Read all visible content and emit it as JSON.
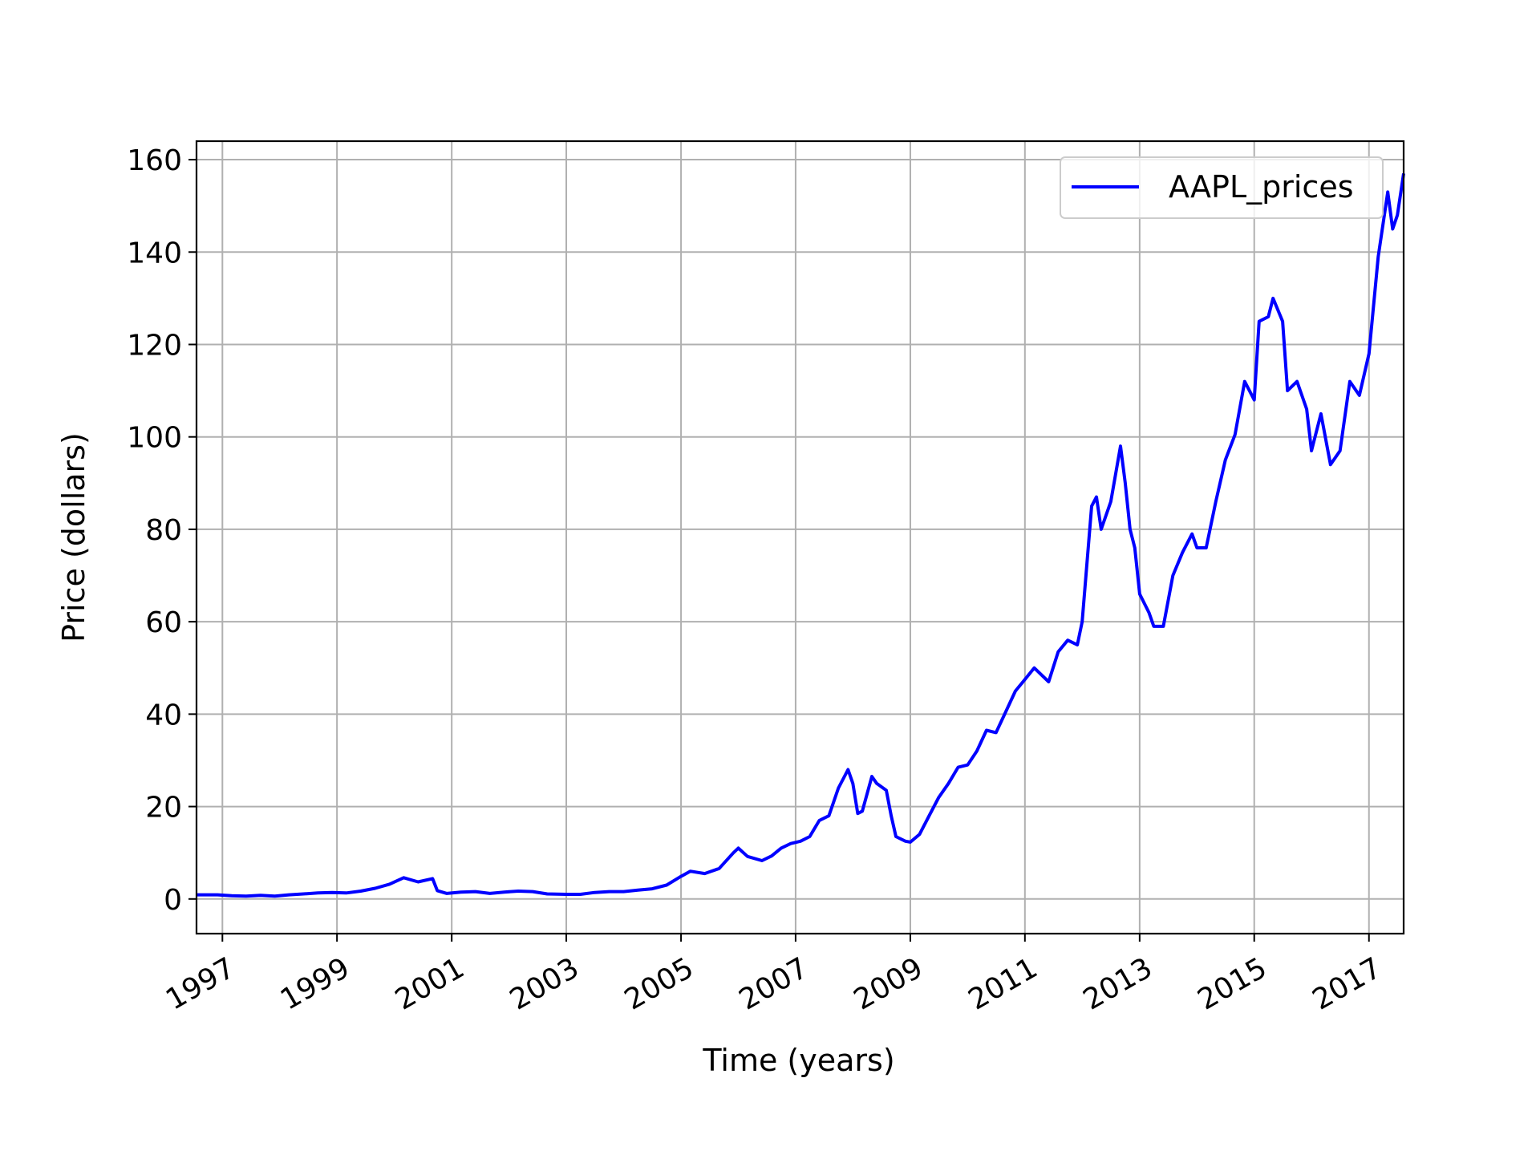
{
  "chart_data": {
    "type": "line",
    "title": "",
    "xlabel": "Time (years)",
    "ylabel": "Price (dollars)",
    "grid": true,
    "legend_position": "top-right",
    "xlim": [
      "1996-07-20",
      "2017-08-10"
    ],
    "ylim": [
      -7.5,
      164
    ],
    "x_ticks": [
      "1997",
      "1999",
      "2001",
      "2003",
      "2005",
      "2007",
      "2009",
      "2011",
      "2013",
      "2015",
      "2017"
    ],
    "y_ticks": [
      "0",
      "20",
      "40",
      "60",
      "80",
      "100",
      "120",
      "140",
      "160"
    ],
    "series": [
      {
        "name": "AAPL_prices",
        "color": "#0000ff",
        "points": [
          [
            "1996-07-20",
            0.9
          ],
          [
            "1996-12-01",
            0.9
          ],
          [
            "1997-03-01",
            0.7
          ],
          [
            "1997-06-01",
            0.6
          ],
          [
            "1997-09-01",
            0.8
          ],
          [
            "1997-12-01",
            0.6
          ],
          [
            "1998-03-01",
            0.9
          ],
          [
            "1998-06-01",
            1.1
          ],
          [
            "1998-09-01",
            1.3
          ],
          [
            "1998-12-01",
            1.4
          ],
          [
            "1999-03-01",
            1.3
          ],
          [
            "1999-06-01",
            1.7
          ],
          [
            "1999-09-01",
            2.3
          ],
          [
            "1999-12-01",
            3.2
          ],
          [
            "2000-03-01",
            4.6
          ],
          [
            "2000-06-01",
            3.7
          ],
          [
            "2000-09-01",
            4.4
          ],
          [
            "2000-10-01",
            1.8
          ],
          [
            "2000-12-01",
            1.2
          ],
          [
            "2001-03-01",
            1.5
          ],
          [
            "2001-06-01",
            1.6
          ],
          [
            "2001-09-01",
            1.2
          ],
          [
            "2001-12-01",
            1.5
          ],
          [
            "2002-03-01",
            1.7
          ],
          [
            "2002-06-01",
            1.6
          ],
          [
            "2002-09-01",
            1.1
          ],
          [
            "2003-01-01",
            1.0
          ],
          [
            "2003-04-01",
            1.0
          ],
          [
            "2003-07-01",
            1.4
          ],
          [
            "2003-10-01",
            1.6
          ],
          [
            "2004-01-01",
            1.6
          ],
          [
            "2004-04-01",
            1.9
          ],
          [
            "2004-07-01",
            2.2
          ],
          [
            "2004-10-01",
            3.0
          ],
          [
            "2005-01-01",
            4.9
          ],
          [
            "2005-03-01",
            6.0
          ],
          [
            "2005-06-01",
            5.5
          ],
          [
            "2005-09-01",
            6.6
          ],
          [
            "2005-12-01",
            10.0
          ],
          [
            "2006-01-01",
            11.0
          ],
          [
            "2006-03-01",
            9.2
          ],
          [
            "2006-06-01",
            8.3
          ],
          [
            "2006-08-01",
            9.3
          ],
          [
            "2006-10-01",
            11.0
          ],
          [
            "2006-12-01",
            12.0
          ],
          [
            "2007-02-01",
            12.5
          ],
          [
            "2007-04-01",
            13.5
          ],
          [
            "2007-06-01",
            17.0
          ],
          [
            "2007-08-01",
            18.0
          ],
          [
            "2007-10-01",
            24.0
          ],
          [
            "2007-12-01",
            28.0
          ],
          [
            "2008-01-01",
            25.0
          ],
          [
            "2008-02-01",
            18.5
          ],
          [
            "2008-03-01",
            19.0
          ],
          [
            "2008-05-01",
            26.5
          ],
          [
            "2008-06-01",
            25.0
          ],
          [
            "2008-08-01",
            23.5
          ],
          [
            "2008-09-01",
            18.0
          ],
          [
            "2008-10-01",
            13.5
          ],
          [
            "2008-12-01",
            12.5
          ],
          [
            "2009-01-01",
            12.3
          ],
          [
            "2009-03-01",
            14.0
          ],
          [
            "2009-05-01",
            18.0
          ],
          [
            "2009-07-01",
            22.0
          ],
          [
            "2009-09-01",
            25.0
          ],
          [
            "2009-11-01",
            28.5
          ],
          [
            "2010-01-01",
            29.0
          ],
          [
            "2010-03-01",
            32.0
          ],
          [
            "2010-05-01",
            36.5
          ],
          [
            "2010-07-01",
            36.0
          ],
          [
            "2010-09-01",
            40.5
          ],
          [
            "2010-11-01",
            45.0
          ],
          [
            "2011-01-01",
            47.5
          ],
          [
            "2011-03-01",
            50.0
          ],
          [
            "2011-06-01",
            47.0
          ],
          [
            "2011-08-01",
            53.5
          ],
          [
            "2011-10-01",
            56.0
          ],
          [
            "2011-12-01",
            55.0
          ],
          [
            "2012-01-01",
            60.0
          ],
          [
            "2012-03-01",
            85.0
          ],
          [
            "2012-04-01",
            87.0
          ],
          [
            "2012-05-01",
            80.0
          ],
          [
            "2012-07-01",
            86.0
          ],
          [
            "2012-09-01",
            98.0
          ],
          [
            "2012-10-01",
            90.0
          ],
          [
            "2012-11-01",
            80.0
          ],
          [
            "2012-12-01",
            76.0
          ],
          [
            "2013-01-01",
            66.0
          ],
          [
            "2013-03-01",
            62.0
          ],
          [
            "2013-04-01",
            59.0
          ],
          [
            "2013-06-01",
            59.0
          ],
          [
            "2013-08-01",
            70.0
          ],
          [
            "2013-10-01",
            75.0
          ],
          [
            "2013-12-01",
            79.0
          ],
          [
            "2014-01-01",
            76.0
          ],
          [
            "2014-03-01",
            76.0
          ],
          [
            "2014-05-01",
            86.0
          ],
          [
            "2014-07-01",
            95.0
          ],
          [
            "2014-09-01",
            100.5
          ],
          [
            "2014-11-01",
            112.0
          ],
          [
            "2015-01-01",
            108.0
          ],
          [
            "2015-02-01",
            125.0
          ],
          [
            "2015-04-01",
            126.0
          ],
          [
            "2015-05-01",
            130.0
          ],
          [
            "2015-07-01",
            125.0
          ],
          [
            "2015-08-01",
            110.0
          ],
          [
            "2015-10-01",
            112.0
          ],
          [
            "2015-12-01",
            106.0
          ],
          [
            "2016-01-01",
            97.0
          ],
          [
            "2016-03-01",
            105.0
          ],
          [
            "2016-05-01",
            94.0
          ],
          [
            "2016-07-01",
            97.0
          ],
          [
            "2016-09-01",
            112.0
          ],
          [
            "2016-11-01",
            109.0
          ],
          [
            "2017-01-01",
            118.0
          ],
          [
            "2017-03-01",
            139.0
          ],
          [
            "2017-05-01",
            153.0
          ],
          [
            "2017-06-01",
            145.0
          ],
          [
            "2017-07-01",
            148.0
          ],
          [
            "2017-08-10",
            157.0
          ]
        ]
      }
    ]
  }
}
